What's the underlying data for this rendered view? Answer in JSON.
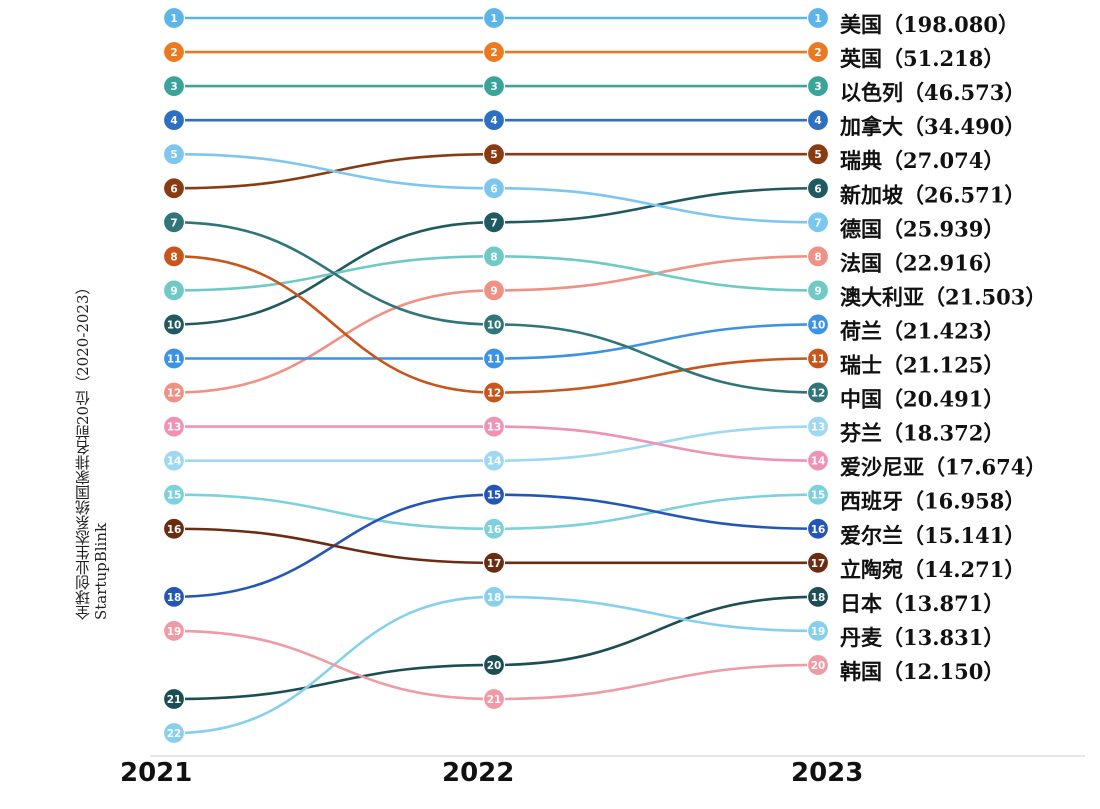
{
  "chart_data": {
    "type": "line",
    "ylabel": "全球创业生态系统国家排名前20位（2020-2023）",
    "ysource": "StartupBlink",
    "categories": [
      "2021",
      "2022",
      "2023"
    ],
    "series": [
      {
        "name": "美国",
        "score": "198.080",
        "ranks": [
          1,
          1,
          1
        ],
        "color": "#5bb5ea"
      },
      {
        "name": "英国",
        "score": "51.218",
        "ranks": [
          2,
          2,
          2
        ],
        "color": "#e97a22"
      },
      {
        "name": "以色列",
        "score": "46.573",
        "ranks": [
          3,
          3,
          3
        ],
        "color": "#3aa39a"
      },
      {
        "name": "加拿大",
        "score": "34.490",
        "ranks": [
          4,
          4,
          4
        ],
        "color": "#2d6fc0"
      },
      {
        "name": "瑞典",
        "score": "27.074",
        "ranks": [
          6,
          5,
          5
        ],
        "color": "#8a3b12"
      },
      {
        "name": "新加坡",
        "score": "26.571",
        "ranks": [
          10,
          7,
          6
        ],
        "color": "#1f5a60"
      },
      {
        "name": "德国",
        "score": "25.939",
        "ranks": [
          5,
          6,
          7
        ],
        "color": "#7cc7f0"
      },
      {
        "name": "法国",
        "score": "22.916",
        "ranks": [
          12,
          9,
          8
        ],
        "color": "#ef9184"
      },
      {
        "name": "澳大利亚",
        "score": "21.503",
        "ranks": [
          9,
          8,
          9
        ],
        "color": "#6fcac6"
      },
      {
        "name": "荷兰",
        "score": "21.423",
        "ranks": [
          11,
          11,
          10
        ],
        "color": "#3d93e3"
      },
      {
        "name": "瑞士",
        "score": "21.125",
        "ranks": [
          8,
          12,
          11
        ],
        "color": "#c8561a"
      },
      {
        "name": "中国",
        "score": "20.491",
        "ranks": [
          7,
          10,
          12
        ],
        "color": "#2f7579"
      },
      {
        "name": "芬兰",
        "score": "18.372",
        "ranks": [
          14,
          14,
          13
        ],
        "color": "#9fd8f3"
      },
      {
        "name": "爱沙尼亚",
        "score": "17.674",
        "ranks": [
          13,
          13,
          14
        ],
        "color": "#ef93b6"
      },
      {
        "name": "西班牙",
        "score": "16.958",
        "ranks": [
          15,
          16,
          15
        ],
        "color": "#7dd0dd"
      },
      {
        "name": "爱尔兰",
        "score": "15.141",
        "ranks": [
          18,
          15,
          16
        ],
        "color": "#2456b7"
      },
      {
        "name": "立陶宛",
        "score": "14.271",
        "ranks": [
          16,
          17,
          17
        ],
        "color": "#6b2c12"
      },
      {
        "name": "日本",
        "score": "13.871",
        "ranks": [
          21,
          20,
          18
        ],
        "color": "#1c4e54"
      },
      {
        "name": "丹麦",
        "score": "13.831",
        "ranks": [
          22,
          18,
          19
        ],
        "color": "#86d0ee"
      },
      {
        "name": "韩国",
        "score": "12.150",
        "ranks": [
          19,
          21,
          20
        ],
        "color": "#ef9aa4"
      }
    ]
  }
}
